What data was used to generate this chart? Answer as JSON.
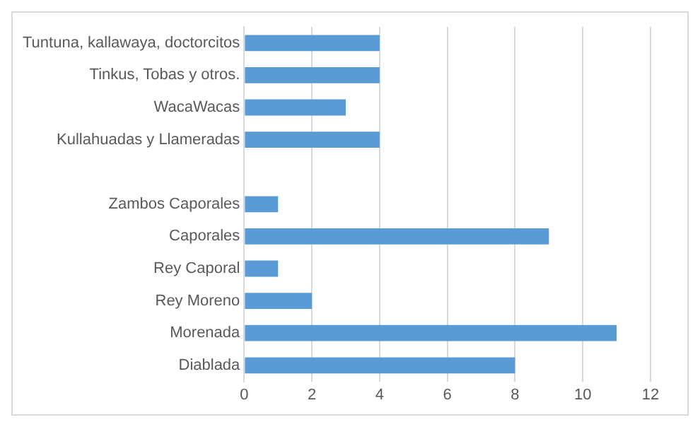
{
  "chart_data": {
    "type": "bar",
    "orientation": "horizontal",
    "categories": [
      "Tuntuna, kallawaya, doctorcitos",
      "Tinkus, Tobas y otros.",
      "WacaWacas",
      "Kullahuadas y Llameradas",
      null,
      "Zambos Caporales",
      "Caporales",
      "Rey Caporal",
      "Rey Moreno",
      "Morenada",
      "Diablada"
    ],
    "values": [
      4,
      4,
      3,
      4,
      null,
      1,
      9,
      1,
      2,
      11,
      8
    ],
    "color": "#5b9bd5",
    "xlim": [
      0,
      12
    ],
    "xticks": [
      0,
      2,
      4,
      6,
      8,
      10,
      12
    ],
    "grid": "x",
    "legend": false
  }
}
